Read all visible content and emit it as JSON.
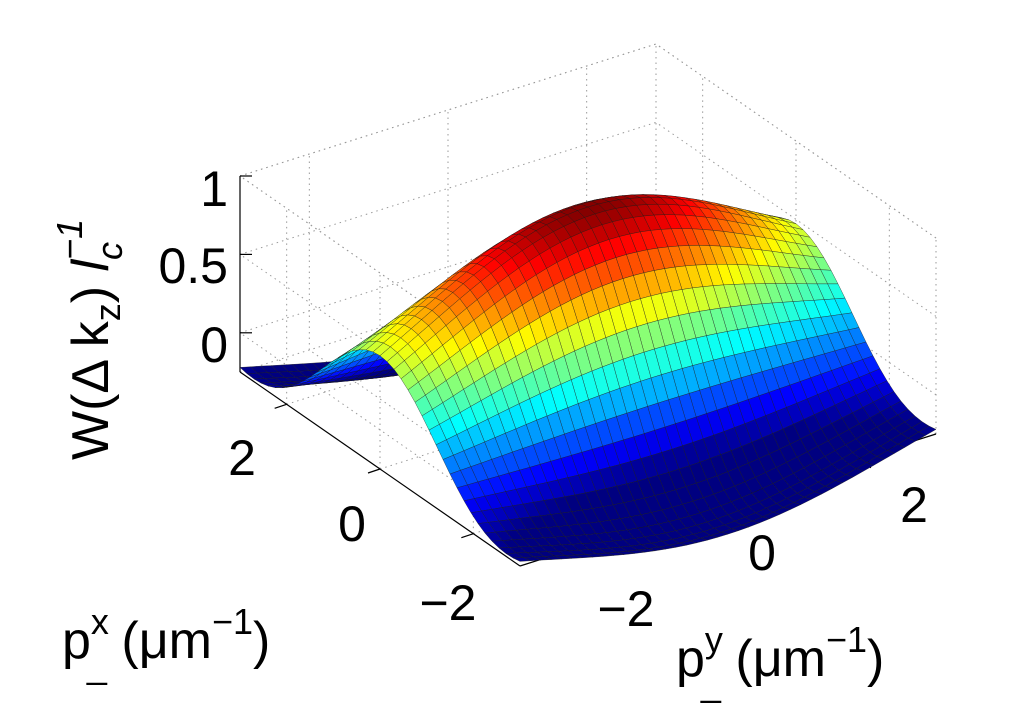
{
  "chart_data": {
    "type": "surface",
    "title": "",
    "xlabel": {
      "base": "p",
      "sup": "x",
      "sub": "_",
      "unit_open": " (μm",
      "unit_exp": "−1",
      "unit_close": ")"
    },
    "ylabel": {
      "base": "p",
      "sup": "y",
      "sub": "_",
      "unit_open": " (μm",
      "unit_exp": "−1",
      "unit_close": ")"
    },
    "zlabel": {
      "main": "W(Δ k",
      "sub_k": "z",
      "close": ")",
      "sep": "  ",
      "l": "l",
      "sub_l": "c",
      "sup_l": "−1"
    },
    "x_ticks": [
      "−2",
      "0",
      "2"
    ],
    "y_ticks": [
      "−2",
      "0",
      "2"
    ],
    "z_ticks": [
      "0",
      "0.5",
      "1"
    ],
    "x_range": [
      -3,
      3
    ],
    "y_range": [
      -3,
      3
    ],
    "z_range": [
      -0.25,
      1
    ],
    "grid": "on",
    "colormap": "jet",
    "grid_size": 40,
    "surface_model": "z = exp(-(px^2+py^2)/12) * cos(px)  (peak 1 at origin, ridge along py, minima ≈ -0.25 near px = ±3)"
  }
}
